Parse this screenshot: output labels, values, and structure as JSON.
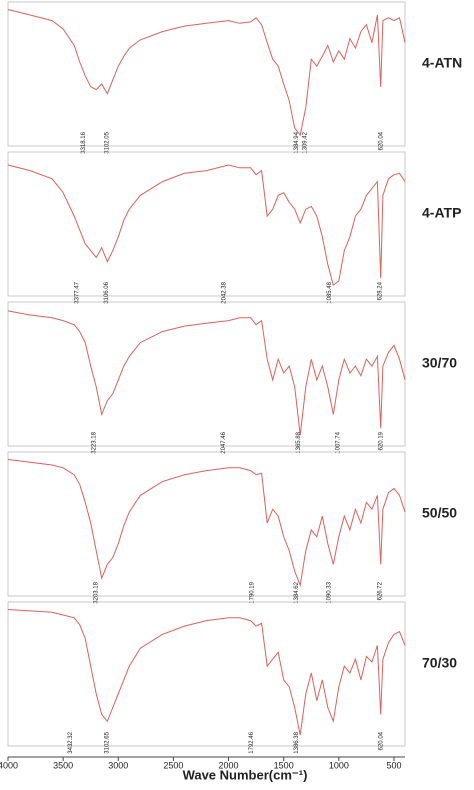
{
  "chart_data": {
    "type": "line",
    "x_label": "Wave Number(cm⁻¹)",
    "xlim": [
      4000,
      400
    ],
    "ylim": [
      0,
      100
    ],
    "xticks": [
      4000,
      3500,
      3000,
      2500,
      2000,
      1500,
      1000,
      500
    ],
    "x": [
      4000,
      3800,
      3600,
      3500,
      3400,
      3350,
      3300,
      3250,
      3200,
      3150,
      3100,
      3050,
      3000,
      2950,
      2900,
      2800,
      2600,
      2400,
      2200,
      2000,
      1900,
      1800,
      1750,
      1700,
      1650,
      1600,
      1550,
      1500,
      1450,
      1400,
      1350,
      1300,
      1250,
      1200,
      1150,
      1100,
      1050,
      1000,
      950,
      900,
      850,
      800,
      750,
      700,
      650,
      620,
      600,
      550,
      500,
      450,
      400
    ],
    "series": [
      {
        "name": "4-ATN",
        "color": "#e0605a",
        "values": [
          96,
          92,
          88,
          82,
          70,
          58,
          48,
          40,
          38,
          42,
          35,
          45,
          55,
          62,
          68,
          74,
          80,
          84,
          86,
          88,
          86,
          87,
          90,
          85,
          72,
          60,
          55,
          42,
          30,
          10,
          5,
          25,
          60,
          55,
          62,
          70,
          58,
          66,
          60,
          75,
          68,
          80,
          85,
          72,
          92,
          40,
          88,
          90,
          88,
          90,
          72
        ],
        "annotations": [
          {
            "text": "3318.16",
            "x": 3318
          },
          {
            "text": "3102.05",
            "x": 3102
          },
          {
            "text": "1384.94",
            "x": 1385
          },
          {
            "text": "1309.42",
            "x": 1309
          },
          {
            "text": "620.04",
            "x": 620
          }
        ]
      },
      {
        "name": "4-ATP",
        "color": "#e0605a",
        "values": [
          92,
          88,
          82,
          72,
          55,
          45,
          35,
          30,
          25,
          32,
          22,
          30,
          40,
          52,
          60,
          70,
          80,
          86,
          88,
          92,
          90,
          90,
          85,
          88,
          55,
          60,
          70,
          72,
          65,
          60,
          50,
          60,
          62,
          55,
          40,
          20,
          5,
          8,
          30,
          40,
          55,
          60,
          70,
          75,
          80,
          10,
          70,
          82,
          85,
          86,
          80
        ],
        "annotations": [
          {
            "text": "3377.47",
            "x": 3377
          },
          {
            "text": "3106.06",
            "x": 3106
          },
          {
            "text": "2042.38",
            "x": 2042
          },
          {
            "text": "1085.48",
            "x": 1085
          },
          {
            "text": "628.24",
            "x": 628
          }
        ]
      },
      {
        "name": "30/70",
        "color": "#e0605a",
        "values": [
          95,
          92,
          90,
          88,
          85,
          80,
          72,
          55,
          40,
          20,
          30,
          35,
          45,
          55,
          62,
          72,
          80,
          84,
          86,
          88,
          90,
          90,
          85,
          88,
          60,
          45,
          60,
          50,
          55,
          40,
          5,
          40,
          60,
          45,
          55,
          40,
          20,
          45,
          60,
          50,
          55,
          48,
          60,
          55,
          62,
          10,
          55,
          65,
          70,
          60,
          45
        ],
        "annotations": [
          {
            "text": "3223.18",
            "x": 3223
          },
          {
            "text": "2047.46",
            "x": 2047
          },
          {
            "text": "1365.88",
            "x": 1366
          },
          {
            "text": "1007.74",
            "x": 1008
          },
          {
            "text": "620.19",
            "x": 620
          }
        ]
      },
      {
        "name": "50/50",
        "color": "#e0605a",
        "values": [
          96,
          94,
          92,
          90,
          85,
          78,
          65,
          50,
          30,
          10,
          20,
          25,
          35,
          48,
          58,
          70,
          80,
          85,
          88,
          90,
          90,
          88,
          85,
          86,
          50,
          60,
          55,
          40,
          30,
          15,
          5,
          30,
          45,
          40,
          55,
          35,
          20,
          40,
          55,
          45,
          60,
          50,
          65,
          60,
          70,
          20,
          60,
          72,
          75,
          70,
          58
        ],
        "annotations": [
          {
            "text": "3203.18",
            "x": 3203
          },
          {
            "text": "1790.19",
            "x": 1790
          },
          {
            "text": "1384.62",
            "x": 1385
          },
          {
            "text": "1090.33",
            "x": 1090
          },
          {
            "text": "626.72",
            "x": 626
          }
        ]
      },
      {
        "name": "70/30",
        "color": "#e0605a",
        "values": [
          96,
          95,
          94,
          92,
          90,
          85,
          75,
          55,
          35,
          20,
          15,
          25,
          35,
          45,
          55,
          68,
          78,
          84,
          88,
          90,
          90,
          88,
          84,
          86,
          55,
          60,
          65,
          45,
          40,
          25,
          5,
          35,
          50,
          30,
          45,
          25,
          15,
          40,
          55,
          50,
          60,
          45,
          62,
          58,
          70,
          20,
          60,
          72,
          78,
          80,
          70
        ],
        "annotations": [
          {
            "text": "3432.32",
            "x": 3432
          },
          {
            "text": "3102.65",
            "x": 3102
          },
          {
            "text": "1792.46",
            "x": 1792
          },
          {
            "text": "1386.38",
            "x": 1386
          },
          {
            "text": "620.04",
            "x": 620
          }
        ]
      }
    ]
  }
}
